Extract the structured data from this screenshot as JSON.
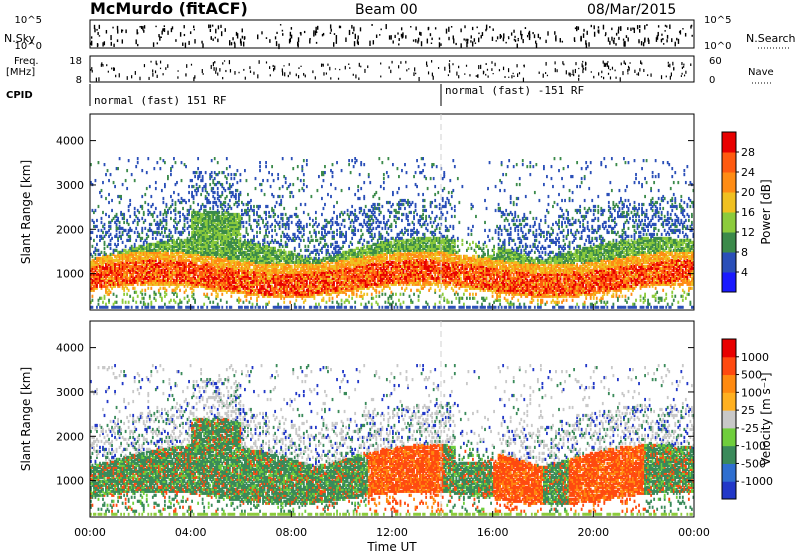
{
  "header": {
    "station": "McMurdo (fitACF)",
    "beam": "Beam 00",
    "date": "08/Mar/2015"
  },
  "summary_panel": {
    "nsky_label": "N.Sky",
    "nsky_ticks": [
      "10^5",
      "10^0"
    ],
    "nsearch_label": "N.Search",
    "nsearch_ticks": [
      "10^5",
      "10^0"
    ],
    "freq_label_line1": "Freq.",
    "freq_label_line2": "[MHz]",
    "freq_ticks": [
      "18",
      "8"
    ],
    "nave_label": "Nave",
    "nave_ticks": [
      "60",
      "0"
    ],
    "cpid_label": "CPID",
    "cpid_segments": [
      {
        "label": "normal (fast) 151 RF",
        "start_hour": 0
      },
      {
        "label": "normal (fast) -151 RF",
        "start_hour": 14.1
      }
    ]
  },
  "chart_data": [
    {
      "type": "heatmap",
      "name": "power",
      "ylabel": "Slant Range [km]",
      "yticks": [
        1000,
        2000,
        3000,
        4000
      ],
      "ylim": [
        180,
        4600
      ],
      "xlim_hours": [
        0,
        24
      ],
      "colorbar_label": "Power [dB]",
      "colorbar_ticks": [
        "4",
        "8",
        "12",
        "16",
        "20",
        "24",
        "28"
      ],
      "colorbar_colors": [
        "#1a1aff",
        "#2a4fb8",
        "#3b8a4a",
        "#8ccb3c",
        "#f0c020",
        "#ff8c14",
        "#ff5a10",
        "#e80000"
      ],
      "colors": {
        "low": "#1f3fb0",
        "mid": "#2e8b57",
        "high": "#ff7f0e",
        "peak": "#e81010"
      }
    },
    {
      "type": "heatmap",
      "name": "velocity",
      "ylabel": "Slant Range [km]",
      "yticks": [
        1000,
        2000,
        3000,
        4000
      ],
      "ylim": [
        180,
        4600
      ],
      "xlim_hours": [
        0,
        24
      ],
      "xticks": [
        "00:00",
        "04:00",
        "08:00",
        "12:00",
        "16:00",
        "20:00",
        "00:00"
      ],
      "xlabel": "Time UT",
      "colorbar_label": "Velocity [m s⁻¹]",
      "colorbar_ticks": [
        "1000",
        "500",
        "100",
        "25",
        "-25",
        "-100",
        "-500",
        "-1000"
      ],
      "colorbar_colors": [
        "#2238c8",
        "#2f6fd0",
        "#3a8a5a",
        "#6fce3c",
        "#c8c8c8",
        "#ffb020",
        "#ff8a10",
        "#ff4a10",
        "#e80000"
      ],
      "colors": {
        "toward": "#3a8a5a",
        "away": "#f28a18",
        "ground": "#bdbdbd"
      }
    }
  ]
}
